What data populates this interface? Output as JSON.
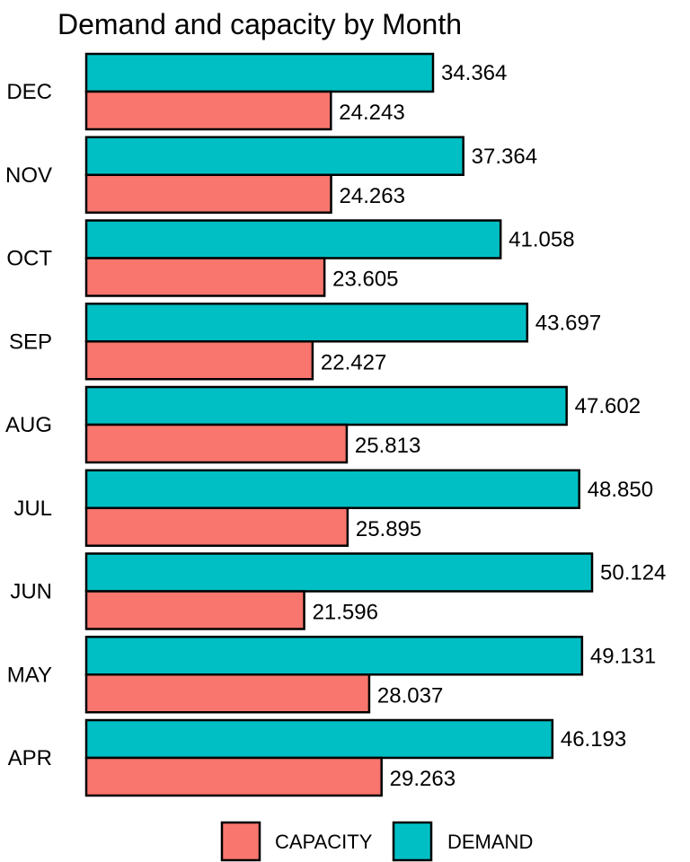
{
  "chart_data": {
    "type": "bar",
    "orientation": "horizontal",
    "title": "Demand and capacity by Month",
    "categories": [
      "DEC",
      "NOV",
      "OCT",
      "SEP",
      "AUG",
      "JUL",
      "JUN",
      "MAY",
      "APR"
    ],
    "series": [
      {
        "name": "DEMAND",
        "color": "#00BFC4",
        "values": [
          34.364,
          37.364,
          41.058,
          43.697,
          47.602,
          48.85,
          50.124,
          49.131,
          46.193
        ]
      },
      {
        "name": "CAPACITY",
        "color": "#F8766D",
        "values": [
          24.243,
          24.263,
          23.605,
          22.427,
          25.813,
          25.895,
          21.596,
          28.037,
          29.263
        ]
      }
    ],
    "xlim": [
      0,
      50.124
    ],
    "grid": false,
    "legend_position": "bottom"
  }
}
